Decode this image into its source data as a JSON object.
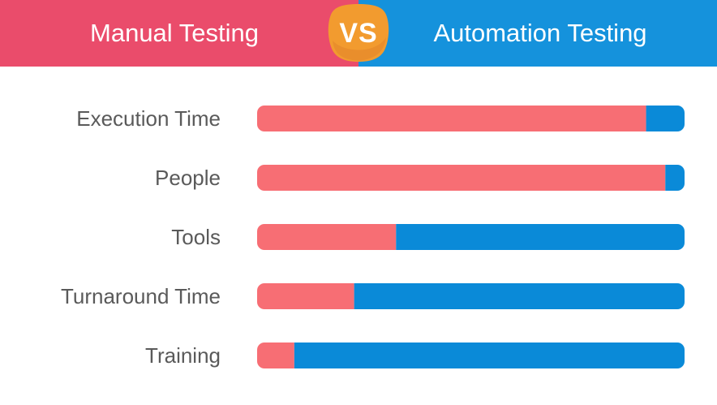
{
  "header": {
    "left_title": "Manual Testing",
    "right_title": "Automation Testing",
    "badge": "VS"
  },
  "colors": {
    "manual": "#f76e74",
    "automation": "#0a8ad8",
    "header_left": "#ea4c6b",
    "header_right": "#1592dc",
    "badge": "#f29b2f",
    "label": "#5a5a5a"
  },
  "chart_data": {
    "type": "bar",
    "orientation": "horizontal",
    "stacked": true,
    "categories": [
      "Execution Time",
      "People",
      "Tools",
      "Turnaround Time",
      "Training"
    ],
    "series": [
      {
        "name": "Manual Testing",
        "values": [
          91,
          95.5,
          32.5,
          22.7,
          8.7
        ]
      },
      {
        "name": "Automation Testing",
        "values": [
          9,
          4.5,
          67.5,
          77.3,
          91.3
        ]
      }
    ],
    "xlim": [
      0,
      100
    ],
    "grid": false,
    "legend": "top",
    "title": "",
    "xlabel": "",
    "ylabel": ""
  }
}
